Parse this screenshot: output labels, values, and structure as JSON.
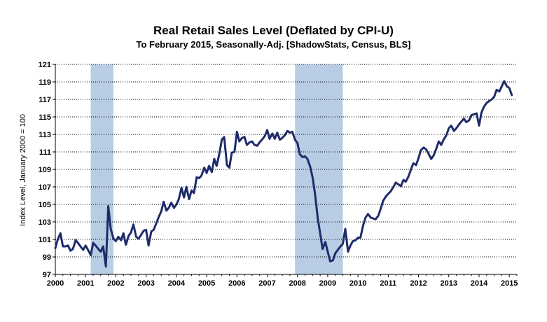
{
  "chart_data": {
    "type": "line",
    "title": "Real Retail Sales Level (Deflated by CPI-U)",
    "subtitle": "To February 2015, Seasonally-Adj. [ShadowStats, Census, BLS]",
    "ylabel": "Index Level, January 2000 = 100",
    "xlabel": "",
    "xlim": [
      2000.0,
      2015.25
    ],
    "ylim": [
      97,
      121
    ],
    "x_ticks": [
      "2000",
      "2001",
      "2002",
      "2003",
      "2004",
      "2005",
      "2006",
      "2007",
      "2008",
      "2009",
      "2010",
      "2011",
      "2012",
      "2013",
      "2014",
      "2015"
    ],
    "y_ticks": [
      "97",
      "99",
      "101",
      "103",
      "105",
      "107",
      "109",
      "111",
      "113",
      "115",
      "117",
      "119",
      "121"
    ],
    "grid": "horizontal",
    "legend": "none",
    "recessions": [
      {
        "start": 2001.17,
        "end": 2001.92
      },
      {
        "start": 2007.92,
        "end": 2009.5
      }
    ],
    "series": [
      {
        "line_color": "#1f2c6b",
        "points": [
          [
            2000.0,
            100.0
          ],
          [
            2000.08,
            101.0
          ],
          [
            2000.17,
            101.7
          ],
          [
            2000.25,
            100.2
          ],
          [
            2000.33,
            100.2
          ],
          [
            2000.42,
            100.3
          ],
          [
            2000.5,
            99.7
          ],
          [
            2000.58,
            99.9
          ],
          [
            2000.67,
            100.9
          ],
          [
            2000.75,
            100.6
          ],
          [
            2000.83,
            100.2
          ],
          [
            2000.92,
            99.8
          ],
          [
            2001.0,
            100.3
          ],
          [
            2001.08,
            99.8
          ],
          [
            2001.17,
            99.2
          ],
          [
            2001.25,
            100.6
          ],
          [
            2001.33,
            100.3
          ],
          [
            2001.42,
            99.9
          ],
          [
            2001.5,
            99.6
          ],
          [
            2001.58,
            100.2
          ],
          [
            2001.67,
            97.9
          ],
          [
            2001.75,
            104.8
          ],
          [
            2001.83,
            102.2
          ],
          [
            2001.92,
            101.1
          ],
          [
            2002.0,
            100.8
          ],
          [
            2002.08,
            101.3
          ],
          [
            2002.17,
            100.9
          ],
          [
            2002.25,
            101.7
          ],
          [
            2002.33,
            100.4
          ],
          [
            2002.42,
            101.4
          ],
          [
            2002.5,
            101.8
          ],
          [
            2002.58,
            102.7
          ],
          [
            2002.67,
            101.3
          ],
          [
            2002.75,
            101.1
          ],
          [
            2002.83,
            101.5
          ],
          [
            2002.92,
            102.0
          ],
          [
            2003.0,
            102.1
          ],
          [
            2003.08,
            100.3
          ],
          [
            2003.17,
            101.9
          ],
          [
            2003.25,
            102.1
          ],
          [
            2003.33,
            102.8
          ],
          [
            2003.42,
            103.6
          ],
          [
            2003.5,
            104.2
          ],
          [
            2003.58,
            105.3
          ],
          [
            2003.67,
            104.3
          ],
          [
            2003.75,
            104.6
          ],
          [
            2003.83,
            105.2
          ],
          [
            2003.92,
            104.6
          ],
          [
            2004.0,
            105.0
          ],
          [
            2004.08,
            105.6
          ],
          [
            2004.17,
            106.9
          ],
          [
            2004.25,
            105.8
          ],
          [
            2004.33,
            107.0
          ],
          [
            2004.42,
            105.6
          ],
          [
            2004.5,
            106.6
          ],
          [
            2004.58,
            106.3
          ],
          [
            2004.67,
            108.1
          ],
          [
            2004.75,
            108.0
          ],
          [
            2004.83,
            108.3
          ],
          [
            2004.92,
            109.2
          ],
          [
            2005.0,
            108.6
          ],
          [
            2005.08,
            109.4
          ],
          [
            2005.17,
            108.7
          ],
          [
            2005.25,
            110.2
          ],
          [
            2005.33,
            109.4
          ],
          [
            2005.42,
            110.8
          ],
          [
            2005.5,
            112.4
          ],
          [
            2005.58,
            112.7
          ],
          [
            2005.67,
            109.5
          ],
          [
            2005.75,
            109.2
          ],
          [
            2005.83,
            110.9
          ],
          [
            2005.92,
            111.0
          ],
          [
            2006.0,
            113.3
          ],
          [
            2006.08,
            112.2
          ],
          [
            2006.17,
            112.6
          ],
          [
            2006.25,
            112.7
          ],
          [
            2006.33,
            111.8
          ],
          [
            2006.42,
            112.1
          ],
          [
            2006.5,
            112.2
          ],
          [
            2006.58,
            111.8
          ],
          [
            2006.67,
            111.7
          ],
          [
            2006.75,
            112.1
          ],
          [
            2006.83,
            112.4
          ],
          [
            2006.92,
            112.8
          ],
          [
            2007.0,
            113.5
          ],
          [
            2007.08,
            112.5
          ],
          [
            2007.17,
            113.1
          ],
          [
            2007.25,
            112.5
          ],
          [
            2007.33,
            113.2
          ],
          [
            2007.42,
            112.4
          ],
          [
            2007.5,
            112.6
          ],
          [
            2007.58,
            112.9
          ],
          [
            2007.67,
            113.4
          ],
          [
            2007.75,
            113.2
          ],
          [
            2007.83,
            113.3
          ],
          [
            2007.92,
            112.4
          ],
          [
            2008.0,
            112.0
          ],
          [
            2008.08,
            110.7
          ],
          [
            2008.17,
            110.4
          ],
          [
            2008.25,
            110.5
          ],
          [
            2008.33,
            110.2
          ],
          [
            2008.42,
            109.3
          ],
          [
            2008.5,
            108.1
          ],
          [
            2008.58,
            106.2
          ],
          [
            2008.67,
            103.4
          ],
          [
            2008.75,
            101.7
          ],
          [
            2008.83,
            99.9
          ],
          [
            2008.92,
            100.7
          ],
          [
            2009.0,
            99.6
          ],
          [
            2009.08,
            98.5
          ],
          [
            2009.17,
            98.6
          ],
          [
            2009.25,
            99.4
          ],
          [
            2009.33,
            99.8
          ],
          [
            2009.42,
            100.2
          ],
          [
            2009.5,
            100.5
          ],
          [
            2009.58,
            102.2
          ],
          [
            2009.67,
            99.6
          ],
          [
            2009.75,
            100.3
          ],
          [
            2009.83,
            100.8
          ],
          [
            2009.92,
            100.9
          ],
          [
            2010.0,
            101.2
          ],
          [
            2010.08,
            101.2
          ],
          [
            2010.17,
            102.6
          ],
          [
            2010.25,
            103.5
          ],
          [
            2010.33,
            103.9
          ],
          [
            2010.42,
            103.5
          ],
          [
            2010.5,
            103.4
          ],
          [
            2010.58,
            103.3
          ],
          [
            2010.67,
            103.7
          ],
          [
            2010.75,
            104.5
          ],
          [
            2010.83,
            105.4
          ],
          [
            2010.92,
            105.9
          ],
          [
            2011.0,
            106.2
          ],
          [
            2011.08,
            106.5
          ],
          [
            2011.17,
            107.0
          ],
          [
            2011.25,
            107.5
          ],
          [
            2011.33,
            107.3
          ],
          [
            2011.42,
            107.1
          ],
          [
            2011.5,
            107.8
          ],
          [
            2011.58,
            107.6
          ],
          [
            2011.67,
            108.2
          ],
          [
            2011.75,
            109.0
          ],
          [
            2011.83,
            109.7
          ],
          [
            2011.92,
            109.5
          ],
          [
            2012.0,
            110.3
          ],
          [
            2012.08,
            111.2
          ],
          [
            2012.17,
            111.5
          ],
          [
            2012.25,
            111.3
          ],
          [
            2012.33,
            110.8
          ],
          [
            2012.42,
            110.2
          ],
          [
            2012.5,
            110.6
          ],
          [
            2012.58,
            111.3
          ],
          [
            2012.67,
            112.2
          ],
          [
            2012.75,
            111.8
          ],
          [
            2012.83,
            112.4
          ],
          [
            2012.92,
            112.9
          ],
          [
            2013.0,
            113.7
          ],
          [
            2013.08,
            114.0
          ],
          [
            2013.17,
            113.4
          ],
          [
            2013.25,
            113.7
          ],
          [
            2013.33,
            114.1
          ],
          [
            2013.42,
            114.5
          ],
          [
            2013.5,
            114.8
          ],
          [
            2013.58,
            114.4
          ],
          [
            2013.67,
            114.6
          ],
          [
            2013.75,
            115.2
          ],
          [
            2013.83,
            115.3
          ],
          [
            2013.92,
            115.4
          ],
          [
            2014.0,
            114.0
          ],
          [
            2014.08,
            115.5
          ],
          [
            2014.17,
            116.2
          ],
          [
            2014.25,
            116.6
          ],
          [
            2014.33,
            116.8
          ],
          [
            2014.42,
            117.0
          ],
          [
            2014.5,
            117.3
          ],
          [
            2014.58,
            118.1
          ],
          [
            2014.67,
            117.9
          ],
          [
            2014.75,
            118.5
          ],
          [
            2014.83,
            119.1
          ],
          [
            2014.92,
            118.5
          ],
          [
            2015.0,
            118.3
          ],
          [
            2015.08,
            117.5
          ]
        ]
      }
    ]
  },
  "colors": {
    "line": "#1f2c6b",
    "recession_fill": "#b8cce4",
    "grid": "#000000"
  }
}
